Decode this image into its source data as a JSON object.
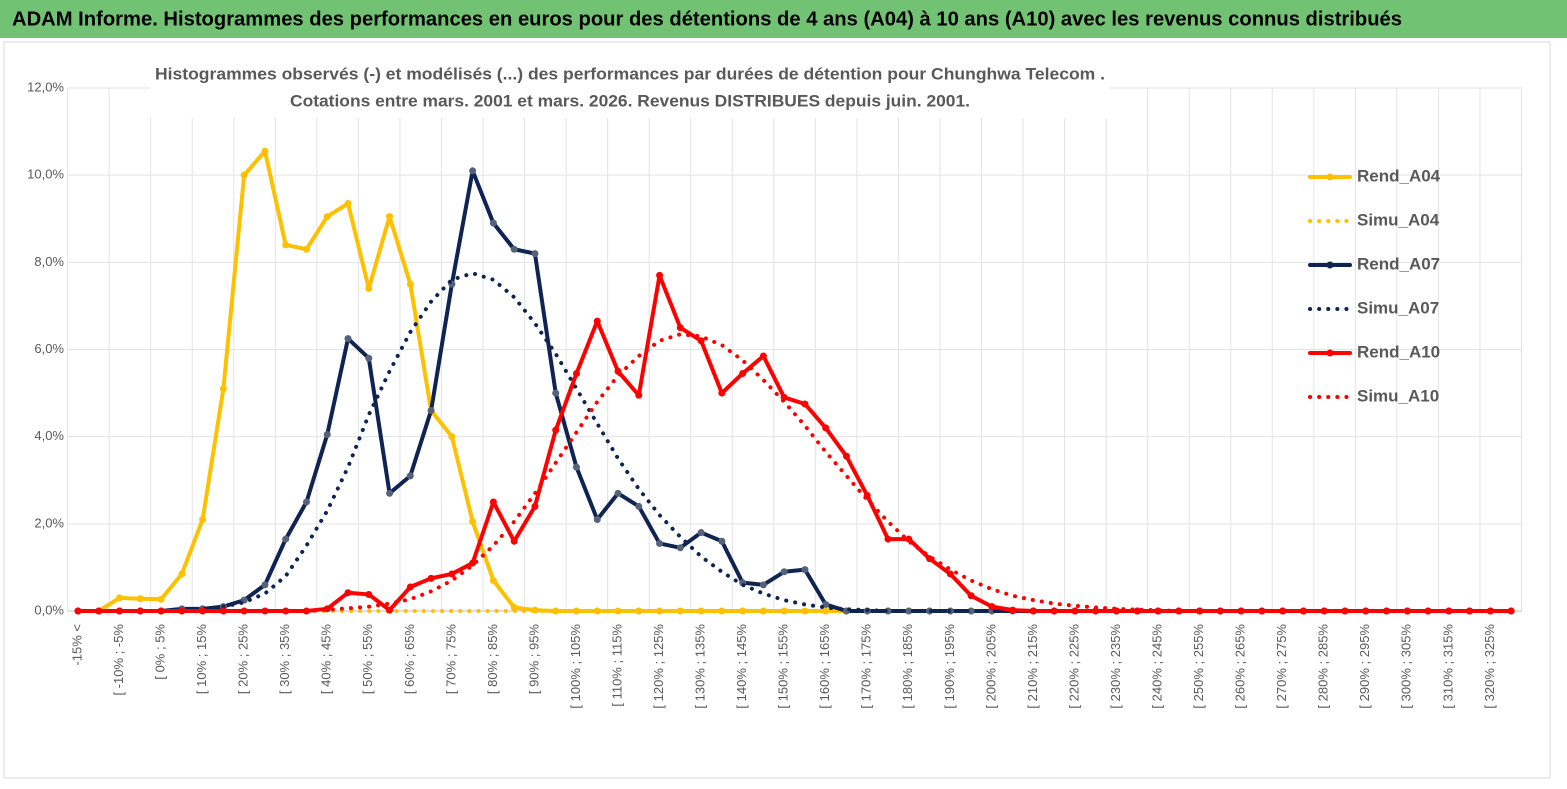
{
  "chart_data": {
    "type": "line",
    "header": "ADAM Informe. Histogrammes des performances en euros pour des détentions de 4 ans (A04) à 10 ans (A10) avec les revenus connus distribués",
    "title": "Histogrammes observés (-) et modélisés (...) des performances par durées de détention pour Chunghwa Telecom .",
    "subtitle": "Cotations entre mars. 2001 et mars. 2026. Revenus DISTRIBUES depuis juin. 2001.",
    "categories": [
      "-15% <",
      null,
      "[ -10% ; -5%",
      null,
      "[ 0% ; 5%",
      null,
      "[ 10% ; 15%",
      null,
      "[ 20% ; 25%",
      null,
      "[ 30% ; 35%",
      null,
      "[ 40% ; 45%",
      null,
      "[ 50% ; 55%",
      null,
      "[ 60% ; 65%",
      null,
      "[ 70% ; 75%",
      null,
      "[ 80% ; 85%",
      null,
      "[ 90% ; 95%",
      null,
      "[ 100% ; 105%",
      null,
      "[ 110% ; 115%",
      null,
      "[ 120% ; 125%",
      null,
      "[ 130% ; 135%",
      null,
      "[ 140% ; 145%",
      null,
      "[ 150% ; 155%",
      null,
      "[ 160% ; 165%",
      null,
      "[ 170% ; 175%",
      null,
      "[ 180% ; 185%",
      null,
      "[ 190% ; 195%",
      null,
      "[ 200% ; 205%",
      null,
      "[ 210% ; 215%",
      null,
      "[ 220% ; 225%",
      null,
      "[ 230% ; 235%",
      null,
      "[ 240% ; 245%",
      null,
      "[ 250% ; 255%",
      null,
      "[ 260% ; 265%",
      null,
      "[ 270% ; 275%",
      null,
      "[ 280% ; 285%",
      null,
      "[ 290% ; 295%",
      null,
      "[ 300% ; 305%",
      null,
      "[ 310% ; 315%",
      null,
      "[ 320% ; 325%",
      null
    ],
    "ylim": [
      0,
      12
    ],
    "yticks": [
      {
        "value": 0,
        "label": "0,0%"
      },
      {
        "value": 2,
        "label": "2,0%"
      },
      {
        "value": 4,
        "label": "4,0%"
      },
      {
        "value": 6,
        "label": "6,0%"
      },
      {
        "value": 8,
        "label": "8,0%"
      },
      {
        "value": 10,
        "label": "10,0%"
      },
      {
        "value": 12,
        "label": "12,0%"
      }
    ],
    "grid": true,
    "legend": "right",
    "series": [
      {
        "name": "Rend_A04",
        "color": "#ffc000",
        "style": "solid",
        "marker": true,
        "values": [
          0,
          0,
          0.3,
          0.28,
          0.27,
          0.85,
          2.1,
          5.1,
          10.0,
          10.55,
          8.4,
          8.3,
          9.05,
          9.35,
          7.4,
          9.05,
          7.5,
          4.6,
          4.0,
          2.05,
          0.7,
          0.08,
          0.02,
          0,
          0,
          0,
          0,
          0,
          0,
          0,
          0,
          0,
          0,
          0,
          0,
          0,
          0,
          0,
          0,
          0,
          0,
          0,
          0,
          0,
          0,
          0,
          0,
          0,
          0,
          0,
          0,
          0,
          0,
          0,
          0,
          0,
          0,
          0,
          0,
          0,
          0,
          0,
          0,
          0,
          0,
          0,
          0,
          0,
          0,
          0
        ]
      },
      {
        "name": "Simu_A04",
        "color": "#ffc000",
        "style": "dotted",
        "marker": false,
        "values": [
          0,
          0,
          0,
          0,
          0,
          0,
          0,
          0,
          0,
          0,
          0,
          0,
          0,
          0,
          0,
          0,
          0,
          0,
          0,
          0,
          0,
          0,
          0,
          0,
          0,
          0,
          0,
          0,
          0,
          0,
          0,
          0,
          0,
          0,
          0,
          0,
          0,
          0,
          0,
          0,
          0,
          0,
          0,
          0,
          0,
          0,
          0,
          0,
          0,
          0,
          0,
          0,
          0,
          0,
          0,
          0,
          0,
          0,
          0,
          0,
          0,
          0,
          0,
          0,
          0,
          0,
          0,
          0,
          0,
          0
        ]
      },
      {
        "name": "Rend_A07",
        "color": "#0f2453",
        "style": "solid",
        "marker": true,
        "values": [
          0,
          0,
          0,
          0,
          0,
          0.05,
          0.05,
          0.1,
          0.25,
          0.6,
          1.65,
          2.5,
          4.05,
          6.25,
          5.8,
          2.7,
          3.1,
          4.6,
          7.5,
          10.1,
          8.9,
          8.3,
          8.2,
          5.0,
          3.3,
          2.1,
          2.7,
          2.4,
          1.55,
          1.45,
          1.8,
          1.6,
          0.65,
          0.6,
          0.9,
          0.95,
          0.15,
          0,
          0,
          0,
          0,
          0,
          0,
          0,
          0,
          0,
          0,
          0,
          0,
          0,
          0,
          0,
          0,
          0,
          0,
          0,
          0,
          0,
          0,
          0,
          0,
          0,
          0,
          0,
          0,
          0,
          0,
          0,
          0,
          0
        ]
      },
      {
        "name": "Simu_A07",
        "color": "#0f2453",
        "style": "dotted",
        "marker": false,
        "values": [
          0,
          0,
          0,
          0,
          0,
          0.02,
          0.05,
          0.1,
          0.2,
          0.4,
          0.8,
          1.5,
          2.3,
          3.3,
          4.5,
          5.5,
          6.4,
          7.1,
          7.6,
          7.75,
          7.6,
          7.2,
          6.6,
          5.9,
          5.1,
          4.3,
          3.5,
          2.8,
          2.2,
          1.7,
          1.25,
          0.9,
          0.6,
          0.4,
          0.25,
          0.15,
          0.08,
          0.04,
          0.02,
          0,
          0,
          0,
          0,
          0,
          0,
          0,
          0,
          0,
          0,
          0,
          0,
          0,
          0,
          0,
          0,
          0,
          0,
          0,
          0,
          0,
          0,
          0,
          0,
          0,
          0,
          0,
          0,
          0,
          0,
          0
        ]
      },
      {
        "name": "Rend_A10",
        "color": "#ff0000",
        "style": "solid",
        "marker": true,
        "values": [
          0,
          0,
          0,
          0,
          0,
          0,
          0,
          0,
          0,
          0,
          0,
          0,
          0.05,
          0.42,
          0.38,
          0.02,
          0.55,
          0.75,
          0.85,
          1.1,
          2.5,
          1.6,
          2.4,
          4.15,
          5.45,
          6.65,
          5.5,
          4.95,
          7.7,
          6.5,
          6.2,
          5.0,
          5.45,
          5.85,
          4.9,
          4.75,
          4.2,
          3.55,
          2.65,
          1.65,
          1.65,
          1.2,
          0.85,
          0.35,
          0.1,
          0.02,
          0,
          0,
          0,
          0,
          0,
          0,
          0,
          0,
          0,
          0,
          0,
          0,
          0,
          0,
          0,
          0,
          0,
          0,
          0,
          0,
          0,
          0,
          0,
          0
        ]
      },
      {
        "name": "Simu_A10",
        "color": "#ff0000",
        "style": "dotted",
        "marker": false,
        "values": [
          0,
          0,
          0,
          0,
          0,
          0,
          0,
          0,
          0,
          0,
          0,
          0,
          0.03,
          0.06,
          0.1,
          0.17,
          0.27,
          0.45,
          0.7,
          1.05,
          1.5,
          2.05,
          2.7,
          3.4,
          4.1,
          4.8,
          5.4,
          5.85,
          6.2,
          6.35,
          6.3,
          6.1,
          5.75,
          5.3,
          4.8,
          4.25,
          3.65,
          3.1,
          2.55,
          2.05,
          1.6,
          1.25,
          0.95,
          0.7,
          0.5,
          0.35,
          0.25,
          0.17,
          0.12,
          0.08,
          0.05,
          0.03,
          0.02,
          0,
          0,
          0,
          0,
          0,
          0,
          0,
          0,
          0,
          0,
          0,
          0,
          0,
          0,
          0,
          0,
          0
        ]
      }
    ]
  }
}
